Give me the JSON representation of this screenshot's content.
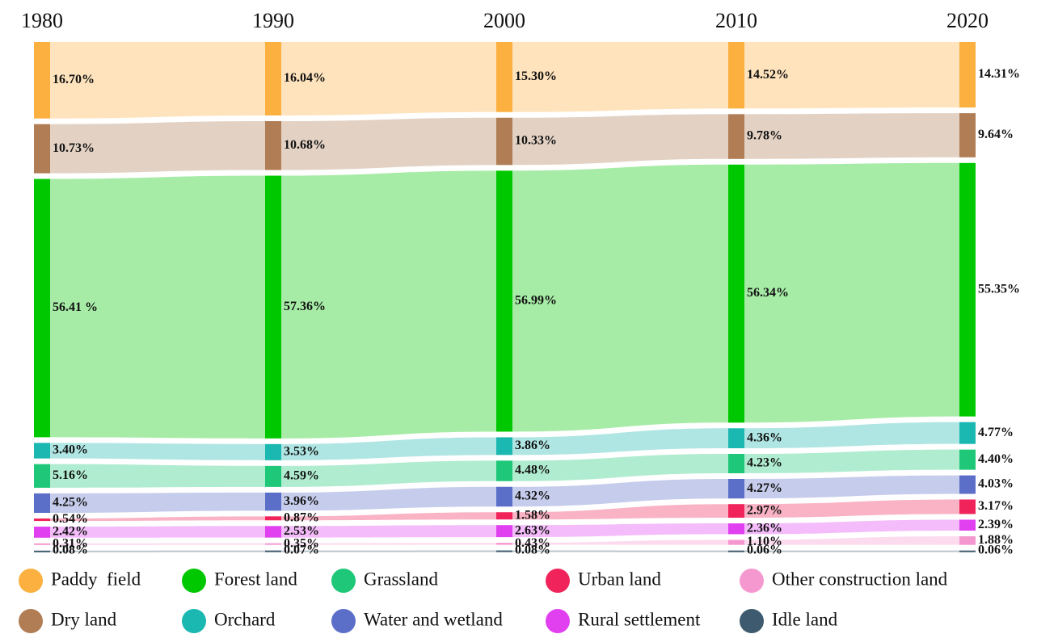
{
  "chart_data": {
    "type": "sankey",
    "categories": [
      "1980",
      "1990",
      "2000",
      "2010",
      "2020"
    ],
    "series": [
      {
        "name": "Paddy  field",
        "color": "#fbb040",
        "values": [
          16.7,
          16.04,
          15.3,
          14.52,
          14.31
        ],
        "value_labels": [
          "16.70%",
          "16.04%",
          "15.30%",
          "14.52%",
          "14.31%"
        ]
      },
      {
        "name": "Dry land",
        "color": "#b07d55",
        "values": [
          10.73,
          10.68,
          10.33,
          9.78,
          9.64
        ],
        "value_labels": [
          "10.73%",
          "10.68%",
          "10.33%",
          "9.78%",
          "9.64%"
        ]
      },
      {
        "name": "Forest land",
        "color": "#00c800",
        "values": [
          56.41,
          57.36,
          56.99,
          56.34,
          55.35
        ],
        "value_labels": [
          "56.41 %",
          "57.36%",
          "56.99%",
          "56.34%",
          "55.35%"
        ]
      },
      {
        "name": "Orchard",
        "color": "#1ab8b0",
        "values": [
          3.4,
          3.53,
          3.86,
          4.36,
          4.77
        ],
        "value_labels": [
          "3.40%",
          "3.53%",
          "3.86%",
          "4.36%",
          "4.77%"
        ]
      },
      {
        "name": "Grassland",
        "color": "#1ec878",
        "values": [
          5.16,
          4.59,
          4.48,
          4.23,
          4.4
        ],
        "value_labels": [
          "5.16%",
          "4.59%",
          "4.48%",
          "4.23%",
          "4.40%"
        ]
      },
      {
        "name": "Water and wetland",
        "color": "#5b6fc8",
        "values": [
          4.25,
          3.96,
          4.32,
          4.27,
          4.03
        ],
        "value_labels": [
          "4.25%",
          "3.96%",
          "4.32%",
          "4.27%",
          "4.03%"
        ]
      },
      {
        "name": "Urban land",
        "color": "#f0245a",
        "values": [
          0.54,
          0.87,
          1.58,
          2.97,
          3.17
        ],
        "value_labels": [
          "0.54%",
          "0.87%",
          "1.58%",
          "2.97%",
          "3.17%"
        ]
      },
      {
        "name": "Rural settlement",
        "color": "#e040f0",
        "values": [
          2.42,
          2.53,
          2.63,
          2.36,
          2.39
        ],
        "value_labels": [
          "2.42%",
          "2.53%",
          "2.63%",
          "2.36%",
          "2.39%"
        ]
      },
      {
        "name": "Other construction land",
        "color": "#f598d0",
        "values": [
          0.31,
          0.35,
          0.43,
          1.1,
          1.88
        ],
        "value_labels": [
          "0.31%",
          "0.35%",
          "0.43%",
          "1.10%",
          "1.88%"
        ]
      },
      {
        "name": "Idle land",
        "color": "#3d5a6e",
        "values": [
          0.08,
          0.07,
          0.08,
          0.06,
          0.06
        ],
        "value_labels": [
          "0.08%",
          "0.07%",
          "0.08%",
          "0.06%",
          "0.06%"
        ]
      }
    ]
  }
}
